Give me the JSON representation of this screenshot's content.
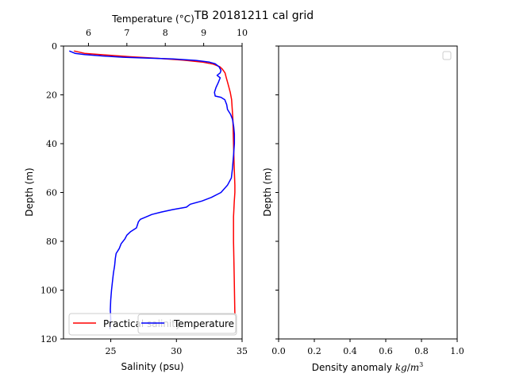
{
  "figure": {
    "title": "TB 20181211 cal grid"
  },
  "chart_data": [
    {
      "type": "line",
      "xlabel": "Salinity (psu)",
      "x2label": "Temperature (°C)",
      "ylabel": "Depth (m)",
      "xlim": [
        21.4,
        35.0
      ],
      "x2lim": [
        5.35,
        10.0
      ],
      "ylim": [
        120,
        0
      ],
      "xticks": [
        25,
        30,
        35
      ],
      "x2ticks": [
        6,
        7,
        8,
        9,
        10
      ],
      "yticks": [
        0,
        20,
        40,
        60,
        80,
        100,
        120
      ],
      "legend": {
        "location": "lower-center",
        "entries": [
          "Practical salinity",
          "Temperature"
        ]
      },
      "grid": false,
      "series": [
        {
          "name": "Practical salinity",
          "axis": "bottom",
          "color": "#ff0000",
          "points": [
            [
              22.2,
              2.0
            ],
            [
              23.0,
              3.0
            ],
            [
              24.5,
              3.6
            ],
            [
              26.5,
              4.4
            ],
            [
              28.5,
              5.0
            ],
            [
              30.5,
              5.8
            ],
            [
              32.0,
              6.6
            ],
            [
              32.8,
              7.4
            ],
            [
              33.3,
              8.5
            ],
            [
              33.5,
              9.5
            ],
            [
              33.7,
              11.0
            ],
            [
              33.8,
              13.0
            ],
            [
              33.9,
              15.0
            ],
            [
              34.0,
              17.0
            ],
            [
              34.1,
              19.0
            ],
            [
              34.2,
              22.0
            ],
            [
              34.25,
              26.0
            ],
            [
              34.3,
              30.0
            ],
            [
              34.35,
              40.0
            ],
            [
              34.4,
              50.0
            ],
            [
              34.45,
              57.0
            ],
            [
              34.45,
              60.0
            ],
            [
              34.4,
              64.0
            ],
            [
              34.35,
              70.0
            ],
            [
              34.35,
              80.0
            ],
            [
              34.4,
              95.0
            ],
            [
              34.45,
              110.0
            ]
          ]
        },
        {
          "name": "Temperature",
          "axis": "top",
          "color": "#0000ff",
          "points": [
            [
              5.5,
              2.0
            ],
            [
              5.65,
              3.0
            ],
            [
              5.9,
              3.5
            ],
            [
              6.3,
              4.0
            ],
            [
              6.9,
              4.6
            ],
            [
              7.5,
              4.9
            ],
            [
              8.2,
              5.3
            ],
            [
              8.8,
              5.9
            ],
            [
              9.15,
              6.6
            ],
            [
              9.3,
              7.3
            ],
            [
              9.4,
              8.5
            ],
            [
              9.45,
              10.0
            ],
            [
              9.43,
              11.0
            ],
            [
              9.35,
              12.0
            ],
            [
              9.43,
              13.0
            ],
            [
              9.38,
              15.0
            ],
            [
              9.32,
              17.0
            ],
            [
              9.28,
              19.0
            ],
            [
              9.3,
              20.5
            ],
            [
              9.45,
              21.0
            ],
            [
              9.55,
              22.0
            ],
            [
              9.6,
              24.0
            ],
            [
              9.62,
              26.0
            ],
            [
              9.7,
              28.0
            ],
            [
              9.75,
              30.0
            ],
            [
              9.78,
              33.0
            ],
            [
              9.8,
              36.0
            ],
            [
              9.8,
              40.0
            ],
            [
              9.78,
              44.0
            ],
            [
              9.75,
              50.0
            ],
            [
              9.72,
              54.0
            ],
            [
              9.62,
              57.0
            ],
            [
              9.45,
              60.0
            ],
            [
              9.2,
              62.0
            ],
            [
              8.95,
              63.5
            ],
            [
              8.65,
              64.8
            ],
            [
              8.55,
              66.0
            ],
            [
              8.2,
              67.0
            ],
            [
              7.9,
              68.0
            ],
            [
              7.65,
              69.0
            ],
            [
              7.5,
              70.0
            ],
            [
              7.35,
              71.0
            ],
            [
              7.3,
              72.0
            ],
            [
              7.25,
              74.5
            ],
            [
              7.1,
              76.0
            ],
            [
              7.0,
              77.5
            ],
            [
              6.95,
              79.0
            ],
            [
              6.85,
              81.0
            ],
            [
              6.8,
              83.0
            ],
            [
              6.72,
              85.0
            ],
            [
              6.7,
              87.0
            ],
            [
              6.68,
              90.0
            ],
            [
              6.65,
              93.0
            ],
            [
              6.62,
              97.0
            ],
            [
              6.6,
              100.0
            ],
            [
              6.58,
              104.0
            ],
            [
              6.57,
              108.0
            ],
            [
              6.58,
              112.0
            ],
            [
              6.56,
              116.0
            ]
          ]
        }
      ]
    },
    {
      "type": "line",
      "xlabel": "Density anomaly $kg/m^3$",
      "ylabel": "Depth (m)",
      "xlim": [
        0.0,
        1.0
      ],
      "ylim": [
        120,
        0
      ],
      "xticks": [
        0.0,
        0.2,
        0.4,
        0.6,
        0.8,
        1.0
      ],
      "xticklabels": [
        "0.0",
        "0.2",
        "0.4",
        "0.6",
        "0.8",
        "1.0"
      ],
      "yticks": [
        0,
        20,
        40,
        60,
        80,
        100,
        120
      ],
      "legend": {
        "location": "top-right",
        "entries": []
      },
      "grid": false,
      "series": []
    }
  ]
}
